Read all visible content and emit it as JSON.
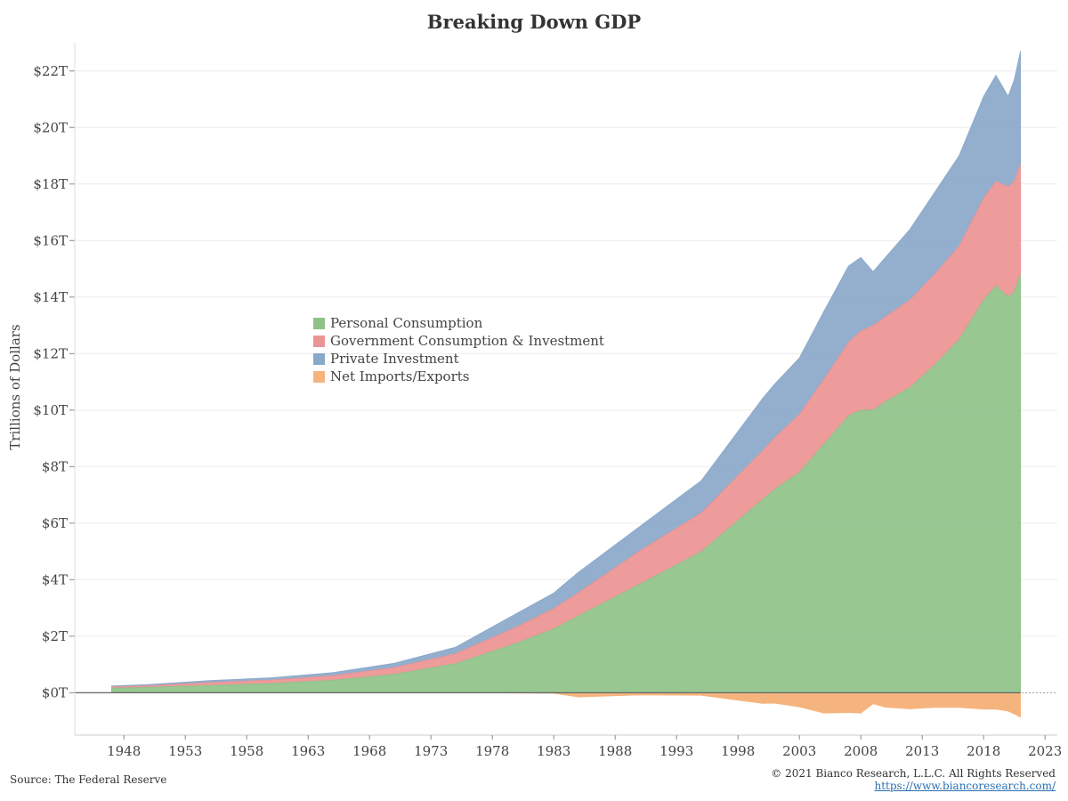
{
  "chart_data": {
    "type": "area",
    "title": "Breaking Down GDP",
    "ylabel": "Trillions of Dollars",
    "xlabel": "",
    "ylim": [
      -1.5,
      23
    ],
    "xlim": [
      1944,
      2024
    ],
    "x_tick_labels": [
      "1948",
      "1953",
      "1958",
      "1963",
      "1968",
      "1973",
      "1978",
      "1983",
      "1988",
      "1993",
      "1998",
      "2003",
      "2008",
      "2013",
      "2018",
      "2023"
    ],
    "y_tick_labels": [
      "$0T",
      "$2T",
      "$4T",
      "$6T",
      "$8T",
      "$10T",
      "$12T",
      "$14T",
      "$16T",
      "$18T",
      "$20T",
      "$22T"
    ],
    "y_tick_values": [
      0,
      2,
      4,
      6,
      8,
      10,
      12,
      14,
      16,
      18,
      20,
      22
    ],
    "stacked": true,
    "x": [
      1947,
      1950,
      1955,
      1960,
      1965,
      1970,
      1975,
      1980,
      1983,
      1985,
      1990,
      1995,
      2000,
      2001,
      2003,
      2005,
      2007,
      2008,
      2009,
      2010,
      2012,
      2014,
      2016,
      2018,
      2019,
      2020,
      2020.5,
      2021
    ],
    "series": [
      {
        "name": "Personal Consumption",
        "color": "#8fc289",
        "values": [
          0.16,
          0.19,
          0.26,
          0.33,
          0.44,
          0.65,
          1.03,
          1.76,
          2.26,
          2.72,
          3.84,
          4.99,
          6.84,
          7.2,
          7.8,
          8.8,
          9.8,
          10.0,
          10.0,
          10.3,
          10.8,
          11.6,
          12.5,
          13.9,
          14.4,
          14.0,
          14.2,
          14.8
        ]
      },
      {
        "name": "Government Consumption & Investment",
        "color": "#ec9393",
        "values": [
          0.04,
          0.05,
          0.1,
          0.12,
          0.16,
          0.24,
          0.35,
          0.57,
          0.72,
          0.82,
          1.18,
          1.37,
          1.72,
          1.83,
          2.05,
          2.3,
          2.6,
          2.8,
          3.0,
          3.0,
          3.1,
          3.2,
          3.3,
          3.6,
          3.7,
          3.9,
          3.9,
          3.9
        ]
      },
      {
        "name": "Private Investment",
        "color": "#8aa8c9",
        "values": [
          0.04,
          0.05,
          0.07,
          0.08,
          0.11,
          0.15,
          0.23,
          0.48,
          0.55,
          0.72,
          0.86,
          1.14,
          1.85,
          1.9,
          2.0,
          2.4,
          2.7,
          2.6,
          1.9,
          2.1,
          2.5,
          2.9,
          3.2,
          3.6,
          3.75,
          3.2,
          3.6,
          4.0
        ]
      },
      {
        "name": "Net Imports/Exports",
        "color": "#f5b47e",
        "values": [
          0.01,
          0.0,
          0.0,
          0.0,
          0.0,
          0.0,
          0.01,
          -0.01,
          -0.02,
          -0.15,
          -0.08,
          -0.09,
          -0.38,
          -0.37,
          -0.5,
          -0.72,
          -0.7,
          -0.72,
          -0.39,
          -0.51,
          -0.57,
          -0.52,
          -0.52,
          -0.58,
          -0.58,
          -0.65,
          -0.75,
          -0.86
        ]
      }
    ]
  },
  "footer": {
    "source": "Source: The Federal Reserve",
    "copyright": "© 2021 Bianco Research, L.L.C. All Rights Reserved",
    "url": "https://www.biancoresearch.com/"
  }
}
